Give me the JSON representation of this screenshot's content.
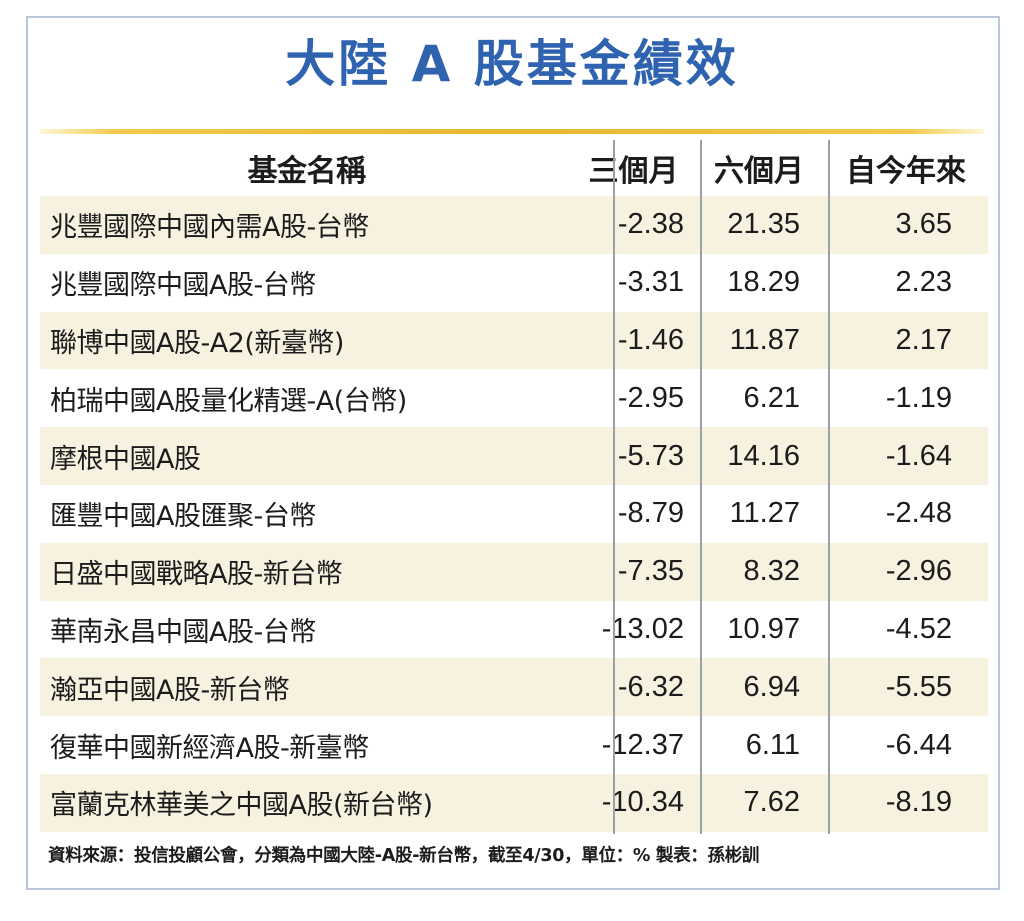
{
  "title": "大陸 A 股基金績效",
  "source_note": "資料來源：投信投顧公會，分類為中國大陸-A股-新台幣，截至4/30，單位：% 製表：孫彬訓",
  "chart_data": {
    "type": "table",
    "title": "大陸 A 股基金績效",
    "columns": [
      "基金名稱",
      "三個月",
      "六個月",
      "自今年來"
    ],
    "rows": [
      {
        "name": "兆豐國際中國內需A股-台幣",
        "m3": "-2.38",
        "m6": "21.35",
        "ytd": "3.65"
      },
      {
        "name": "兆豐國際中國A股-台幣",
        "m3": "-3.31",
        "m6": "18.29",
        "ytd": "2.23"
      },
      {
        "name": "聯博中國A股-A2(新臺幣)",
        "m3": "-1.46",
        "m6": "11.87",
        "ytd": "2.17"
      },
      {
        "name": "柏瑞中國A股量化精選-A(台幣)",
        "m3": "-2.95",
        "m6": "6.21",
        "ytd": "-1.19"
      },
      {
        "name": "摩根中國A股",
        "m3": "-5.73",
        "m6": "14.16",
        "ytd": "-1.64"
      },
      {
        "name": "匯豐中國A股匯聚-台幣",
        "m3": "-8.79",
        "m6": "11.27",
        "ytd": "-2.48"
      },
      {
        "name": "日盛中國戰略A股-新台幣",
        "m3": "-7.35",
        "m6": "8.32",
        "ytd": "-2.96"
      },
      {
        "name": "華南永昌中國A股-台幣",
        "m3": "-13.02",
        "m6": "10.97",
        "ytd": "-4.52"
      },
      {
        "name": "瀚亞中國A股-新台幣",
        "m3": "-6.32",
        "m6": "6.94",
        "ytd": "-5.55"
      },
      {
        "name": "復華中國新經濟A股-新臺幣",
        "m3": "-12.37",
        "m6": "6.11",
        "ytd": "-6.44"
      },
      {
        "name": "富蘭克林華美之中國A股(新台幣)",
        "m3": "-10.34",
        "m6": "7.62",
        "ytd": "-8.19"
      }
    ]
  },
  "colors": {
    "title": "#2f63b0",
    "stripe": "#f7f1e0",
    "gold_rule": "#e8b82d",
    "frame": "#b9c7da",
    "divider": "#9aa0a8"
  }
}
